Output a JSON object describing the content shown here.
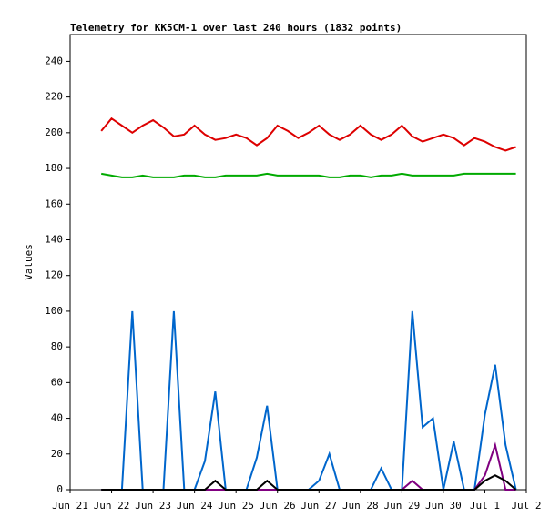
{
  "chart_data": {
    "type": "line",
    "title": "Telemetry for KK5CM-1 over last 240 hours (1832 points)",
    "y_label": "Values",
    "x": [
      0.75,
      1,
      1.25,
      1.5,
      1.75,
      2,
      2.25,
      2.5,
      2.75,
      3,
      3.25,
      3.5,
      3.75,
      4,
      4.25,
      4.5,
      4.75,
      5,
      5.25,
      5.5,
      5.75,
      6,
      6.25,
      6.5,
      6.75,
      7,
      7.25,
      7.5,
      7.75,
      8,
      8.25,
      8.5,
      8.75,
      9,
      9.25,
      9.5,
      9.75,
      10,
      10.25,
      10.5,
      10.75
    ],
    "series": [
      {
        "color": "#dd0000",
        "values": [
          201,
          208,
          204,
          200,
          204,
          207,
          203,
          198,
          199,
          204,
          199,
          196,
          197,
          199,
          197,
          193,
          197,
          204,
          201,
          197,
          200,
          204,
          199,
          196,
          199,
          204,
          199,
          196,
          199,
          204,
          198,
          195,
          197,
          199,
          197,
          193,
          197,
          195,
          192,
          190,
          192
        ]
      },
      {
        "color": "#00aa00",
        "values": [
          177,
          176,
          175,
          175,
          176,
          175,
          175,
          175,
          176,
          176,
          175,
          175,
          176,
          176,
          176,
          176,
          177,
          176,
          176,
          176,
          176,
          176,
          175,
          175,
          176,
          176,
          175,
          176,
          176,
          177,
          176,
          176,
          176,
          176,
          176,
          177,
          177,
          177,
          177,
          177,
          177
        ]
      },
      {
        "color": "#0066cc",
        "values": [
          0,
          0,
          0,
          100,
          0,
          0,
          0,
          100,
          0,
          0,
          16,
          55,
          0,
          0,
          0,
          18,
          47,
          0,
          0,
          0,
          0,
          5,
          20,
          0,
          0,
          0,
          0,
          12,
          0,
          0,
          100,
          35,
          40,
          0,
          27,
          0,
          0,
          42,
          70,
          25,
          0
        ]
      },
      {
        "color": "#800080",
        "values": [
          0,
          0,
          0,
          0,
          0,
          0,
          0,
          0,
          0,
          0,
          0,
          0,
          0,
          0,
          0,
          0,
          0,
          0,
          0,
          0,
          0,
          0,
          0,
          0,
          0,
          0,
          0,
          0,
          0,
          0,
          5,
          0,
          0,
          0,
          0,
          0,
          0,
          8,
          25,
          0,
          0
        ]
      },
      {
        "color": "#000000",
        "values": [
          0,
          0,
          0,
          0,
          0,
          0,
          0,
          0,
          0,
          0,
          0,
          5,
          0,
          0,
          0,
          0,
          5,
          0,
          0,
          0,
          0,
          0,
          0,
          0,
          0,
          0,
          0,
          0,
          0,
          0,
          0,
          0,
          0,
          0,
          0,
          0,
          0,
          5,
          8,
          5,
          0
        ]
      }
    ],
    "xlim": [
      0,
      11
    ],
    "xticks": [
      {
        "value": 0,
        "label": "Jun 21"
      },
      {
        "value": 1,
        "label": "Jun 22"
      },
      {
        "value": 2,
        "label": "Jun 23"
      },
      {
        "value": 3,
        "label": "Jun 24"
      },
      {
        "value": 4,
        "label": "Jun 25"
      },
      {
        "value": 5,
        "label": "Jun 26"
      },
      {
        "value": 6,
        "label": "Jun 27"
      },
      {
        "value": 7,
        "label": "Jun 28"
      },
      {
        "value": 8,
        "label": "Jun 29"
      },
      {
        "value": 9,
        "label": "Jun 30"
      },
      {
        "value": 10,
        "label": "Jul 1"
      },
      {
        "value": 11,
        "label": "Jul 2"
      }
    ],
    "ylim": [
      0,
      255
    ],
    "yticks": [
      0,
      20,
      40,
      60,
      80,
      100,
      120,
      140,
      160,
      180,
      200,
      220,
      240
    ]
  }
}
